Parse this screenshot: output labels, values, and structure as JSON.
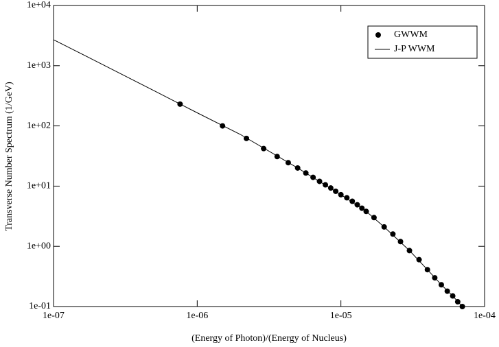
{
  "chart_data": {
    "type": "scatter-line",
    "xlabel": "(Energy of Photon)/(Energy of Nucleus)",
    "ylabel": "Transverse Number Spectrum (1/GeV)",
    "xscale": "log",
    "yscale": "log",
    "legend": "upper right",
    "xlim": [
      1e-07,
      0.0001
    ],
    "ylim": [
      0.1,
      10000
    ],
    "xticks": [
      {
        "value": 1e-07,
        "label": "1e-07"
      },
      {
        "value": 1e-06,
        "label": "1e-06"
      },
      {
        "value": 1e-05,
        "label": "1e-05"
      },
      {
        "value": 0.0001,
        "label": "1e-04"
      }
    ],
    "yticks": [
      {
        "value": 0.1,
        "label": "1e-01"
      },
      {
        "value": 1,
        "label": "1e+00"
      },
      {
        "value": 10,
        "label": "1e+01"
      },
      {
        "value": 100,
        "label": "1e+02"
      },
      {
        "value": 1000,
        "label": "1e+03"
      },
      {
        "value": 10000,
        "label": "1e+04"
      }
    ],
    "series": [
      {
        "name": "GWWM",
        "kind": "scatter",
        "color": "#000000",
        "x": [
          7.6e-07,
          1.5e-06,
          2.2e-06,
          2.9e-06,
          3.6e-06,
          4.3e-06,
          5e-06,
          5.7e-06,
          6.4e-06,
          7.1e-06,
          7.8e-06,
          8.5e-06,
          9.2e-06,
          1e-05,
          1.1e-05,
          1.2e-05,
          1.3e-05,
          1.4e-05,
          1.5e-05,
          1.7e-05,
          2e-05,
          2.3e-05,
          2.6e-05,
          3e-05,
          3.5e-05,
          4e-05,
          4.5e-05,
          5e-05,
          5.5e-05,
          6e-05,
          6.5e-05,
          7e-05
        ],
        "values": [
          230,
          100,
          62,
          42,
          31,
          24.5,
          20,
          16.5,
          14,
          12,
          10.5,
          9.3,
          8.2,
          7.2,
          6.4,
          5.6,
          4.9,
          4.3,
          3.8,
          3.0,
          2.1,
          1.6,
          1.2,
          0.85,
          0.6,
          0.41,
          0.3,
          0.23,
          0.18,
          0.15,
          0.12,
          0.1
        ]
      },
      {
        "name": "J-P WWM",
        "kind": "line",
        "color": "#000000",
        "x": [
          1e-07,
          2e-07,
          5e-07,
          1e-06,
          2e-06,
          5e-06,
          1e-05,
          1.5e-05,
          2e-05,
          3e-05,
          4e-05,
          5e-05,
          6e-05,
          7e-05
        ],
        "values": [
          2700,
          1170,
          385,
          165,
          72,
          20,
          7.2,
          3.8,
          2.1,
          0.85,
          0.41,
          0.23,
          0.15,
          0.1
        ]
      }
    ]
  }
}
